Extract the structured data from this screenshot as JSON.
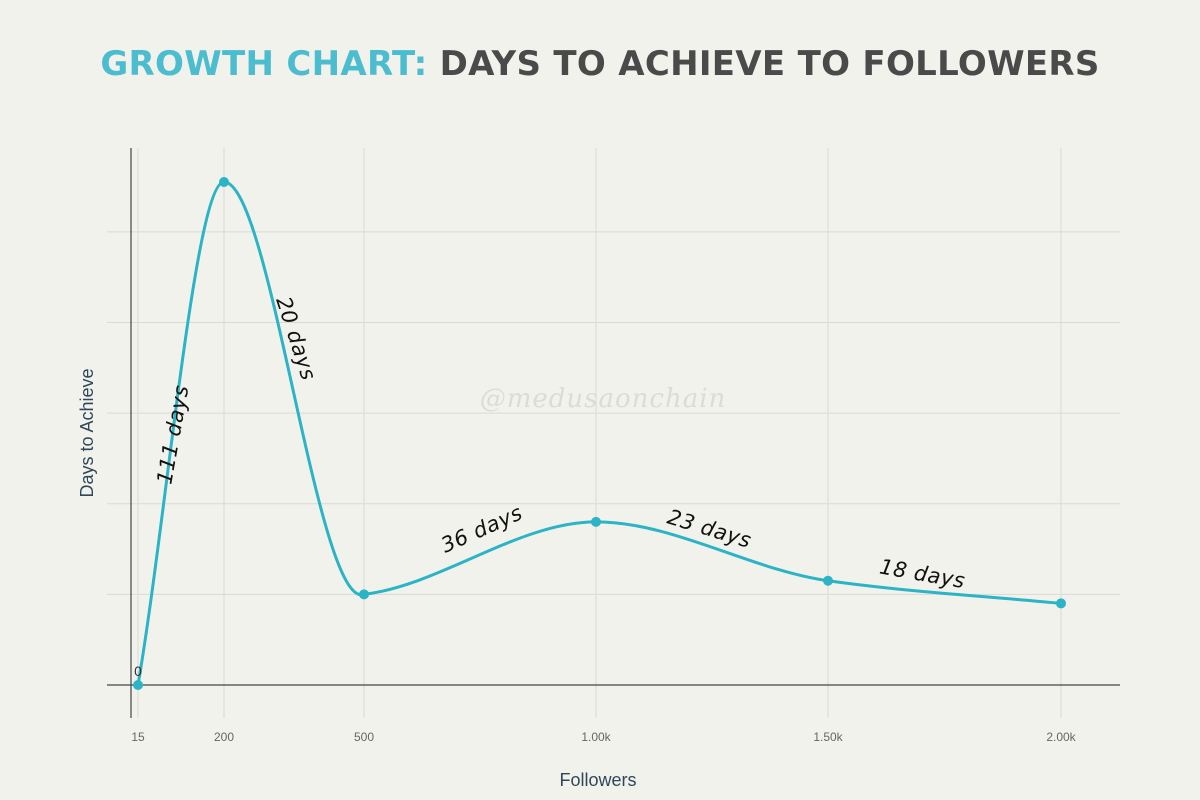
{
  "title": {
    "highlight": "GROWTH CHART:",
    "rest": "DAYS TO ACHIEVE TO FOLLOWERS"
  },
  "watermark": "@medusaonchain",
  "colors": {
    "background": "#f2f2ed",
    "title_accent": "#4cbccf",
    "title_main": "#4a4a4a",
    "line": "#2bb3c6",
    "grid": "#dadad5",
    "axis": "#444444"
  },
  "chart_data": {
    "type": "line",
    "xlabel": "Followers",
    "ylabel": "Days to Achieve",
    "x_ticks": [
      {
        "value": 15,
        "label": "15"
      },
      {
        "value": 200,
        "label": "200"
      },
      {
        "value": 500,
        "label": "500"
      },
      {
        "value": 1000,
        "label": "1.00k"
      },
      {
        "value": 1500,
        "label": "1.50k"
      },
      {
        "value": 2000,
        "label": "2.00k"
      }
    ],
    "xlim": [
      0,
      2130
    ],
    "ylim": [
      0,
      120
    ],
    "y_gridlines": [
      0,
      20,
      40,
      60,
      80,
      100
    ],
    "grid": true,
    "smooth": true,
    "points": [
      {
        "x": 15,
        "y": 0,
        "label": "0"
      },
      {
        "x": 200,
        "y": 111
      },
      {
        "x": 500,
        "y": 20
      },
      {
        "x": 1000,
        "y": 36
      },
      {
        "x": 1500,
        "y": 23
      },
      {
        "x": 2000,
        "y": 18
      }
    ],
    "annotations": [
      {
        "text": "111 days",
        "x": 105,
        "y": 55,
        "angle": -80
      },
      {
        "text": "20 days",
        "x": 340,
        "y": 76,
        "angle": 72
      },
      {
        "text": "36 days",
        "x": 760,
        "y": 33,
        "angle": -24
      },
      {
        "text": "23 days",
        "x": 1240,
        "y": 33,
        "angle": 17
      },
      {
        "text": "18 days",
        "x": 1700,
        "y": 23,
        "angle": 10
      }
    ]
  }
}
